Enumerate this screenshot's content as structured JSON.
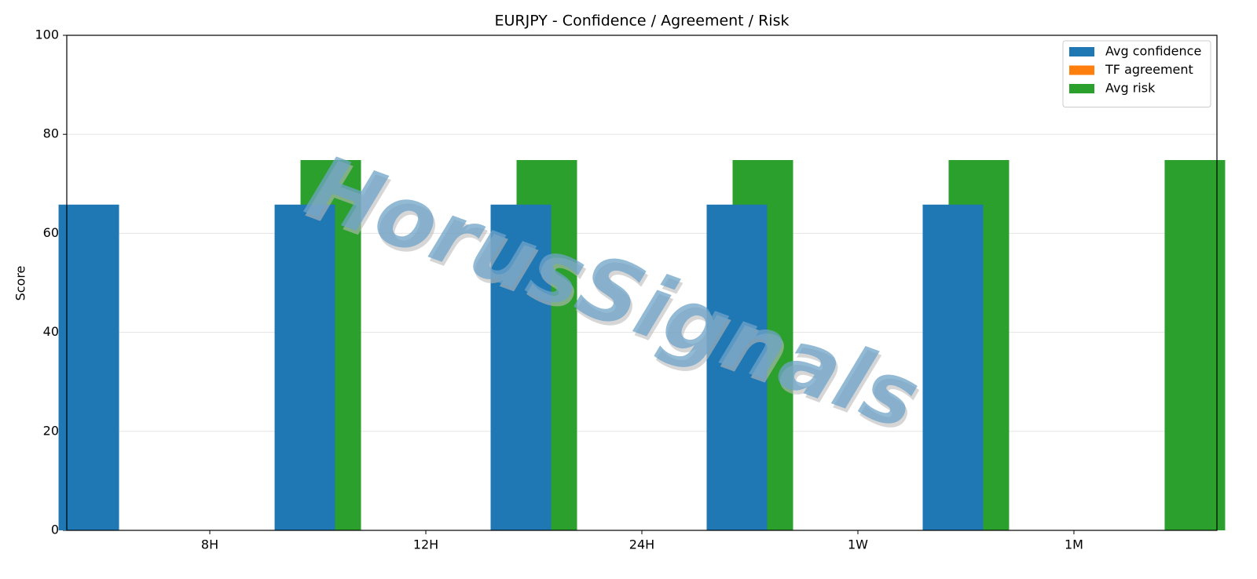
{
  "chart_data": {
    "type": "bar",
    "title": "EURJPY - Confidence / Agreement / Risk",
    "ylabel": "Score",
    "watermark": "HorusSignals",
    "categories": [
      "8H",
      "12H",
      "24H",
      "1W",
      "1M"
    ],
    "series": [
      {
        "name": "Avg confidence",
        "color": "#1f77b4",
        "values": [
          65.8,
          65.8,
          65.8,
          65.8,
          65.8
        ]
      },
      {
        "name": "TF agreement",
        "color": "#ff7f0e",
        "values": [
          0,
          0,
          0,
          0,
          0
        ]
      },
      {
        "name": "Avg risk",
        "color": "#2ca02c",
        "values": [
          74.8,
          74.8,
          74.8,
          74.8,
          74.8
        ]
      }
    ],
    "ylim": [
      0,
      100
    ],
    "yticks": [
      0,
      20,
      40,
      60,
      80,
      100
    ],
    "grid": true,
    "legend": "upper right"
  }
}
